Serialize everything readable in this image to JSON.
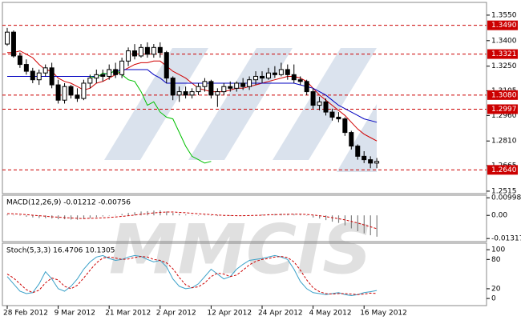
{
  "chart_data": [
    {
      "type": "candlestick",
      "watermark": "MMCIS",
      "categories": [
        "28 Feb 2012",
        null,
        null,
        null,
        null,
        null,
        null,
        null,
        "9 Mar 2012",
        null,
        null,
        null,
        null,
        null,
        null,
        null,
        "21 Mar 2012",
        null,
        null,
        null,
        null,
        null,
        null,
        null,
        "2 Apr 2012",
        null,
        null,
        null,
        null,
        null,
        null,
        null,
        "12 Apr 2012",
        null,
        null,
        null,
        null,
        null,
        null,
        null,
        "24 Apr 2012",
        null,
        null,
        null,
        null,
        null,
        null,
        null,
        "4 May 2012",
        null,
        null,
        null,
        null,
        null,
        null,
        null,
        "16 May 2012",
        null,
        null
      ],
      "ohlc": [
        [
          1.338,
          1.3475,
          1.337,
          1.345
        ],
        [
          1.345,
          1.346,
          1.33,
          1.331
        ],
        [
          1.331,
          1.333,
          1.324,
          1.326
        ],
        [
          1.326,
          1.329,
          1.32,
          1.322
        ],
        [
          1.322,
          1.324,
          1.315,
          1.317
        ],
        [
          1.317,
          1.323,
          1.314,
          1.321
        ],
        [
          1.321,
          1.326,
          1.319,
          1.324
        ],
        [
          1.324,
          1.327,
          1.312,
          1.314
        ],
        [
          1.314,
          1.317,
          1.303,
          1.305
        ],
        [
          1.305,
          1.315,
          1.303,
          1.313
        ],
        [
          1.313,
          1.314,
          1.306,
          1.308
        ],
        [
          1.308,
          1.312,
          1.304,
          1.306
        ],
        [
          1.306,
          1.317,
          1.305,
          1.315
        ],
        [
          1.315,
          1.32,
          1.312,
          1.318
        ],
        [
          1.318,
          1.323,
          1.315,
          1.32
        ],
        [
          1.32,
          1.323,
          1.316,
          1.319
        ],
        [
          1.319,
          1.326,
          1.317,
          1.323
        ],
        [
          1.323,
          1.327,
          1.318,
          1.32
        ],
        [
          1.32,
          1.33,
          1.318,
          1.328
        ],
        [
          1.328,
          1.336,
          1.325,
          1.334
        ],
        [
          1.334,
          1.338,
          1.329,
          1.331
        ],
        [
          1.331,
          1.338,
          1.33,
          1.336
        ],
        [
          1.336,
          1.339,
          1.33,
          1.332
        ],
        [
          1.332,
          1.338,
          1.33,
          1.336
        ],
        [
          1.336,
          1.339,
          1.33,
          1.333
        ],
        [
          1.333,
          1.334,
          1.315,
          1.318
        ],
        [
          1.318,
          1.319,
          1.305,
          1.308
        ],
        [
          1.308,
          1.313,
          1.304,
          1.31
        ],
        [
          1.31,
          1.313,
          1.306,
          1.308
        ],
        [
          1.308,
          1.312,
          1.306,
          1.31
        ],
        [
          1.31,
          1.315,
          1.308,
          1.313
        ],
        [
          1.313,
          1.318,
          1.31,
          1.316
        ],
        [
          1.316,
          1.317,
          1.306,
          1.308
        ],
        [
          1.308,
          1.312,
          1.301,
          1.31
        ],
        [
          1.31,
          1.315,
          1.308,
          1.313
        ],
        [
          1.313,
          1.316,
          1.31,
          1.312
        ],
        [
          1.312,
          1.316,
          1.31,
          1.315
        ],
        [
          1.315,
          1.318,
          1.311,
          1.313
        ],
        [
          1.313,
          1.319,
          1.311,
          1.317
        ],
        [
          1.317,
          1.322,
          1.314,
          1.319
        ],
        [
          1.319,
          1.322,
          1.315,
          1.318
        ],
        [
          1.318,
          1.324,
          1.317,
          1.321
        ],
        [
          1.321,
          1.325,
          1.318,
          1.32
        ],
        [
          1.32,
          1.327,
          1.319,
          1.323
        ],
        [
          1.323,
          1.326,
          1.317,
          1.32
        ],
        [
          1.32,
          1.326,
          1.315,
          1.317
        ],
        [
          1.317,
          1.319,
          1.314,
          1.316
        ],
        [
          1.316,
          1.317,
          1.308,
          1.31
        ],
        [
          1.31,
          1.312,
          1.3,
          1.302
        ],
        [
          1.302,
          1.307,
          1.299,
          1.304
        ],
        [
          1.304,
          1.306,
          1.296,
          1.298
        ],
        [
          1.298,
          1.3,
          1.293,
          1.295
        ],
        [
          1.295,
          1.298,
          1.292,
          1.294
        ],
        [
          1.294,
          1.295,
          1.284,
          1.286
        ],
        [
          1.286,
          1.287,
          1.276,
          1.278
        ],
        [
          1.278,
          1.279,
          1.27,
          1.272
        ],
        [
          1.272,
          1.275,
          1.268,
          1.27
        ],
        [
          1.27,
          1.272,
          1.265,
          1.268
        ],
        [
          1.268,
          1.271,
          1.265,
          1.269
        ]
      ],
      "lines": [
        {
          "color": "#d00000",
          "values": [
            1.333,
            1.333,
            1.334,
            1.332,
            1.33,
            1.326,
            1.323,
            1.322,
            1.318,
            1.316,
            1.315,
            1.313,
            1.311,
            1.312,
            1.315,
            1.316,
            1.318,
            1.32,
            1.322,
            1.324,
            1.326,
            1.327,
            1.327,
            1.328,
            1.328,
            1.325,
            1.322,
            1.32,
            1.318,
            1.315,
            1.312,
            1.311,
            1.31,
            1.31,
            1.31,
            1.311,
            1.312,
            1.312,
            1.313,
            1.314,
            1.315,
            1.316,
            1.317,
            1.318,
            1.319,
            1.319,
            1.318,
            1.316,
            1.312,
            1.308,
            1.305,
            1.302,
            1.299,
            1.296,
            1.292,
            1.288,
            1.285,
            1.283,
            1.281
          ]
        },
        {
          "color": "#0000c0",
          "values": [
            1.319,
            1.319,
            1.319,
            1.319,
            1.319,
            1.319,
            1.319,
            1.319,
            1.319,
            1.319,
            1.319,
            1.319,
            1.319,
            1.319,
            1.319,
            1.32,
            1.321,
            1.322,
            1.323,
            1.323,
            1.323,
            1.323,
            1.323,
            1.32,
            1.318,
            1.315,
            1.315,
            1.315,
            1.315,
            1.315,
            1.315,
            1.315,
            1.315,
            1.315,
            1.315,
            1.315,
            1.315,
            1.315,
            1.315,
            1.315,
            1.315,
            1.315,
            1.315,
            1.315,
            1.315,
            1.315,
            1.314,
            1.313,
            1.312,
            1.31,
            1.308,
            1.305,
            1.302,
            1.3,
            1.298,
            1.296,
            1.294,
            1.293,
            1.292
          ]
        },
        {
          "color": "#00c000",
          "values": [
            null,
            null,
            null,
            null,
            null,
            null,
            null,
            null,
            null,
            null,
            null,
            null,
            null,
            1.319,
            1.318,
            1.321,
            1.32,
            1.323,
            1.32,
            1.317,
            1.316,
            1.31,
            1.302,
            1.304,
            1.298,
            1.295,
            1.294,
            1.286,
            1.278,
            1.272,
            1.27,
            1.268,
            1.269,
            null,
            null,
            null,
            null,
            null,
            null,
            null,
            null,
            null,
            null,
            null,
            null,
            null,
            null,
            null,
            null,
            null,
            null,
            null,
            null,
            null,
            null,
            null,
            null,
            null,
            null
          ]
        }
      ],
      "levels": [
        {
          "value": 1.349,
          "label": "1.3490"
        },
        1.3321,
        {
          "value": 1.308,
          "label": "1.3080"
        },
        1.2997,
        {
          "value": 1.264,
          "label": "1.2640"
        }
      ],
      "level_color": "#cc0000",
      "up_color": "#ffffff",
      "down_color": "#000000",
      "ylim": [
        1.251,
        1.3592
      ],
      "yticks": [
        {
          "value": 1.355,
          "label": "1.3550"
        },
        {
          "value": 1.34,
          "label": "1.3400"
        },
        {
          "value": 1.325,
          "label": "1.3250"
        },
        1.3105,
        {
          "value": 1.296,
          "label": "1.2960"
        },
        {
          "value": 1.281,
          "label": "1.2810"
        },
        1.2665,
        1.2515
      ]
    },
    {
      "type": "macd",
      "label": "MACD(12,26,9) -0.01212 -0.00756",
      "histogram": [
        0.0005,
        0.0003,
        -0.0002,
        -0.0008,
        -0.0012,
        -0.0015,
        -0.0016,
        -0.0018,
        -0.0022,
        -0.0022,
        -0.0024,
        -0.0025,
        -0.002,
        -0.0015,
        -0.001,
        -0.0006,
        -0.0002,
        0.0002,
        0.0008,
        0.0014,
        0.0018,
        0.0022,
        0.0024,
        0.0027,
        0.0028,
        0.0022,
        0.0014,
        0.0009,
        0.0005,
        0.0002,
        0.0001,
        0.0002,
        -0.0002,
        -0.0004,
        -0.0003,
        -0.0003,
        -0.0002,
        -0.0001,
        0.0001,
        0.0003,
        0.0005,
        0.0007,
        0.0008,
        0.001,
        0.0009,
        0.0007,
        0.0004,
        -0.0002,
        -0.0012,
        -0.0018,
        -0.0027,
        -0.0036,
        -0.0043,
        -0.0057,
        -0.0074,
        -0.009,
        -0.0102,
        -0.0113,
        -0.01212
      ],
      "signal": [
        0.001,
        0.0009,
        0.0007,
        0.0004,
        0.0001,
        -0.0002,
        -0.0005,
        -0.0008,
        -0.001,
        -0.0013,
        -0.0015,
        -0.0017,
        -0.0018,
        -0.0017,
        -0.0016,
        -0.0014,
        -0.0012,
        -0.0009,
        -0.0006,
        -0.0002,
        0.0002,
        0.0006,
        0.001,
        0.0014,
        0.0017,
        0.0019,
        0.0019,
        0.0017,
        0.0015,
        0.0012,
        0.0009,
        0.0007,
        0.0004,
        0.0002,
        0,
        -0.0001,
        -0.0002,
        -0.0002,
        -0.0001,
        0,
        0.0001,
        0.0003,
        0.0004,
        0.0005,
        0.0006,
        0.0007,
        0.0007,
        0.0005,
        0.0002,
        -0.0002,
        -0.0007,
        -0.0013,
        -0.0019,
        -0.0026,
        -0.0034,
        -0.0043,
        -0.0054,
        -0.0065,
        -0.00756
      ],
      "histogram_color": "#808080",
      "signal_color": "#cc0000",
      "ylim": [
        -0.014,
        0.011
      ],
      "yticks": [
        0.00998,
        {
          "value": 0,
          "label": "0.00"
        },
        -0.01317
      ]
    },
    {
      "type": "stochastic",
      "label": "Stoch(5,3,3) 16.4706 10.1305",
      "main": [
        45,
        30,
        15,
        10,
        12,
        30,
        55,
        40,
        20,
        15,
        25,
        40,
        60,
        75,
        85,
        88,
        82,
        78,
        80,
        85,
        88,
        86,
        80,
        75,
        78,
        65,
        40,
        25,
        20,
        22,
        30,
        45,
        60,
        50,
        40,
        45,
        60,
        70,
        78,
        80,
        82,
        85,
        88,
        85,
        80,
        60,
        35,
        20,
        12,
        10,
        8,
        10,
        12,
        8,
        6,
        8,
        12,
        14,
        16.4706
      ],
      "signal": [
        50,
        42,
        30,
        18,
        12,
        17,
        32,
        42,
        38,
        25,
        20,
        27,
        42,
        58,
        73,
        83,
        85,
        83,
        80,
        81,
        84,
        86,
        85,
        80,
        78,
        73,
        61,
        43,
        28,
        22,
        24,
        32,
        45,
        52,
        50,
        45,
        48,
        58,
        69,
        76,
        80,
        82,
        85,
        86,
        84,
        75,
        58,
        38,
        22,
        14,
        10,
        9,
        10,
        10,
        9,
        8,
        9,
        11,
        10.1305
      ],
      "main_color": "#3aa0c8",
      "signal_color": "#cc0000",
      "ylim": [
        -8,
        110
      ],
      "yticks": [
        100,
        80,
        20,
        0
      ]
    }
  ]
}
